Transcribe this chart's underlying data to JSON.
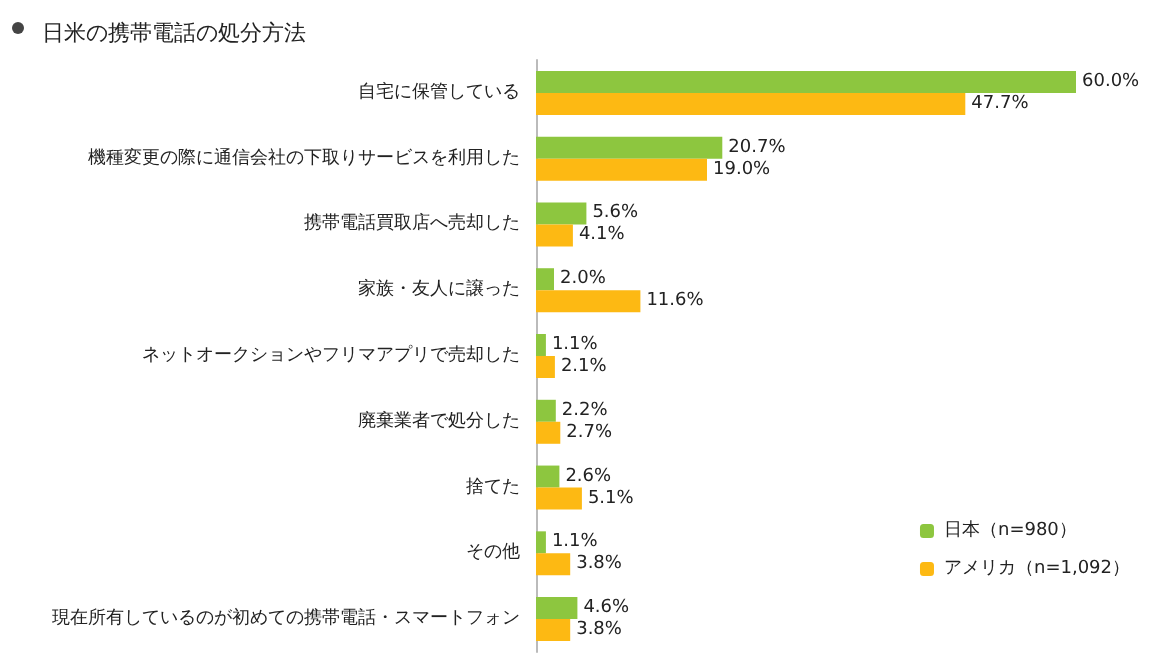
{
  "chart_data": {
    "type": "bar",
    "orientation": "horizontal",
    "title": "日米の携帯電話の処分方法",
    "categories": [
      "自宅に保管している",
      "機種変更の際に通信会社の下取りサービスを利用した",
      "携帯電話買取店へ売却した",
      "家族・友人に譲った",
      "ネットオークションやフリマアプリで売却した",
      "廃棄業者で処分した",
      "捨てた",
      "その他",
      "現在所有しているのが初めての携帯電話・スマートフォン"
    ],
    "series": [
      {
        "name": "日本（n=980）",
        "color": "#8dc63f",
        "values": [
          60.0,
          20.7,
          5.6,
          2.0,
          1.1,
          2.2,
          2.6,
          1.1,
          4.6
        ],
        "value_labels": [
          "60.0%",
          "20.7%",
          "5.6%",
          "2.0%",
          "1.1%",
          "2.2%",
          "2.6%",
          "1.1%",
          "4.6%"
        ]
      },
      {
        "name": "アメリカ（n=1,092）",
        "color": "#fdb913",
        "values": [
          47.7,
          19.0,
          4.1,
          11.6,
          2.1,
          2.7,
          5.1,
          3.8,
          3.8
        ],
        "value_labels": [
          "47.7%",
          "19.0%",
          "4.1%",
          "11.6%",
          "2.1%",
          "2.7%",
          "5.1%",
          "3.8%",
          "3.8%"
        ]
      }
    ],
    "legend": "bottom right",
    "tick_labels": "y"
  }
}
